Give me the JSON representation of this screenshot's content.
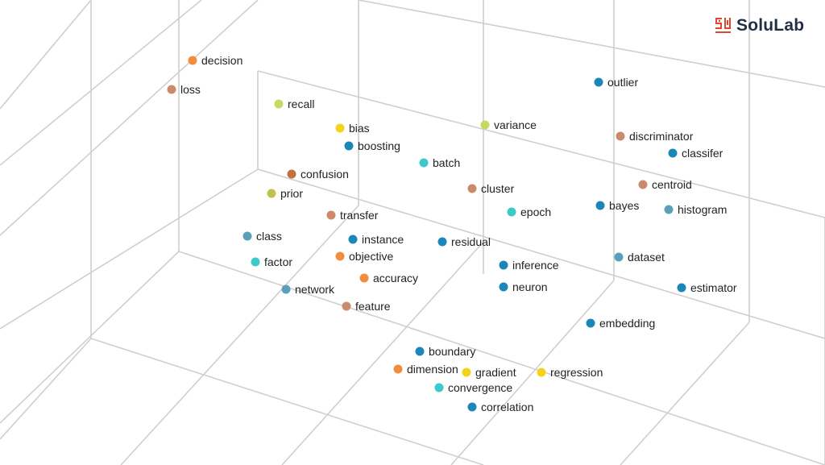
{
  "brand": {
    "name": "SoluLab",
    "logo_icon": "solulab-logo-icon",
    "accent": "#e4432d",
    "text_color": "#1f2f44"
  },
  "colors": {
    "orange": "#f28c3f",
    "tan": "#c98b6b",
    "brown": "#c2703d",
    "lime": "#c7d963",
    "olive": "#bfc24d",
    "yellow": "#f5d31b",
    "blue": "#1d86b8",
    "teal": "#3cc9c9",
    "steel": "#5b9fb8",
    "grid": "#cfcfcf"
  },
  "terms": [
    {
      "label": "decision",
      "color": "orange"
    },
    {
      "label": "loss",
      "color": "tan"
    },
    {
      "label": "recall",
      "color": "lime"
    },
    {
      "label": "bias",
      "color": "yellow"
    },
    {
      "label": "boosting",
      "color": "blue"
    },
    {
      "label": "variance",
      "color": "lime"
    },
    {
      "label": "outlier",
      "color": "blue"
    },
    {
      "label": "discriminator",
      "color": "tan"
    },
    {
      "label": "classifer",
      "color": "blue"
    },
    {
      "label": "batch",
      "color": "teal"
    },
    {
      "label": "confusion",
      "color": "brown"
    },
    {
      "label": "cluster",
      "color": "tan"
    },
    {
      "label": "centroid",
      "color": "tan"
    },
    {
      "label": "prior",
      "color": "olive"
    },
    {
      "label": "transfer",
      "color": "tan"
    },
    {
      "label": "epoch",
      "color": "teal"
    },
    {
      "label": "bayes",
      "color": "blue"
    },
    {
      "label": "histogram",
      "color": "steel"
    },
    {
      "label": "class",
      "color": "steel"
    },
    {
      "label": "instance",
      "color": "blue"
    },
    {
      "label": "residual",
      "color": "blue"
    },
    {
      "label": "objective",
      "color": "orange"
    },
    {
      "label": "factor",
      "color": "teal"
    },
    {
      "label": "inference",
      "color": "blue"
    },
    {
      "label": "dataset",
      "color": "steel"
    },
    {
      "label": "accuracy",
      "color": "orange"
    },
    {
      "label": "network",
      "color": "steel"
    },
    {
      "label": "neuron",
      "color": "blue"
    },
    {
      "label": "estimator",
      "color": "blue"
    },
    {
      "label": "feature",
      "color": "tan"
    },
    {
      "label": "embedding",
      "color": "blue"
    },
    {
      "label": "boundary",
      "color": "blue"
    },
    {
      "label": "dimension",
      "color": "orange"
    },
    {
      "label": "gradient",
      "color": "yellow"
    },
    {
      "label": "regression",
      "color": "yellow"
    },
    {
      "label": "convergence",
      "color": "teal"
    },
    {
      "label": "correlation",
      "color": "blue"
    }
  ]
}
